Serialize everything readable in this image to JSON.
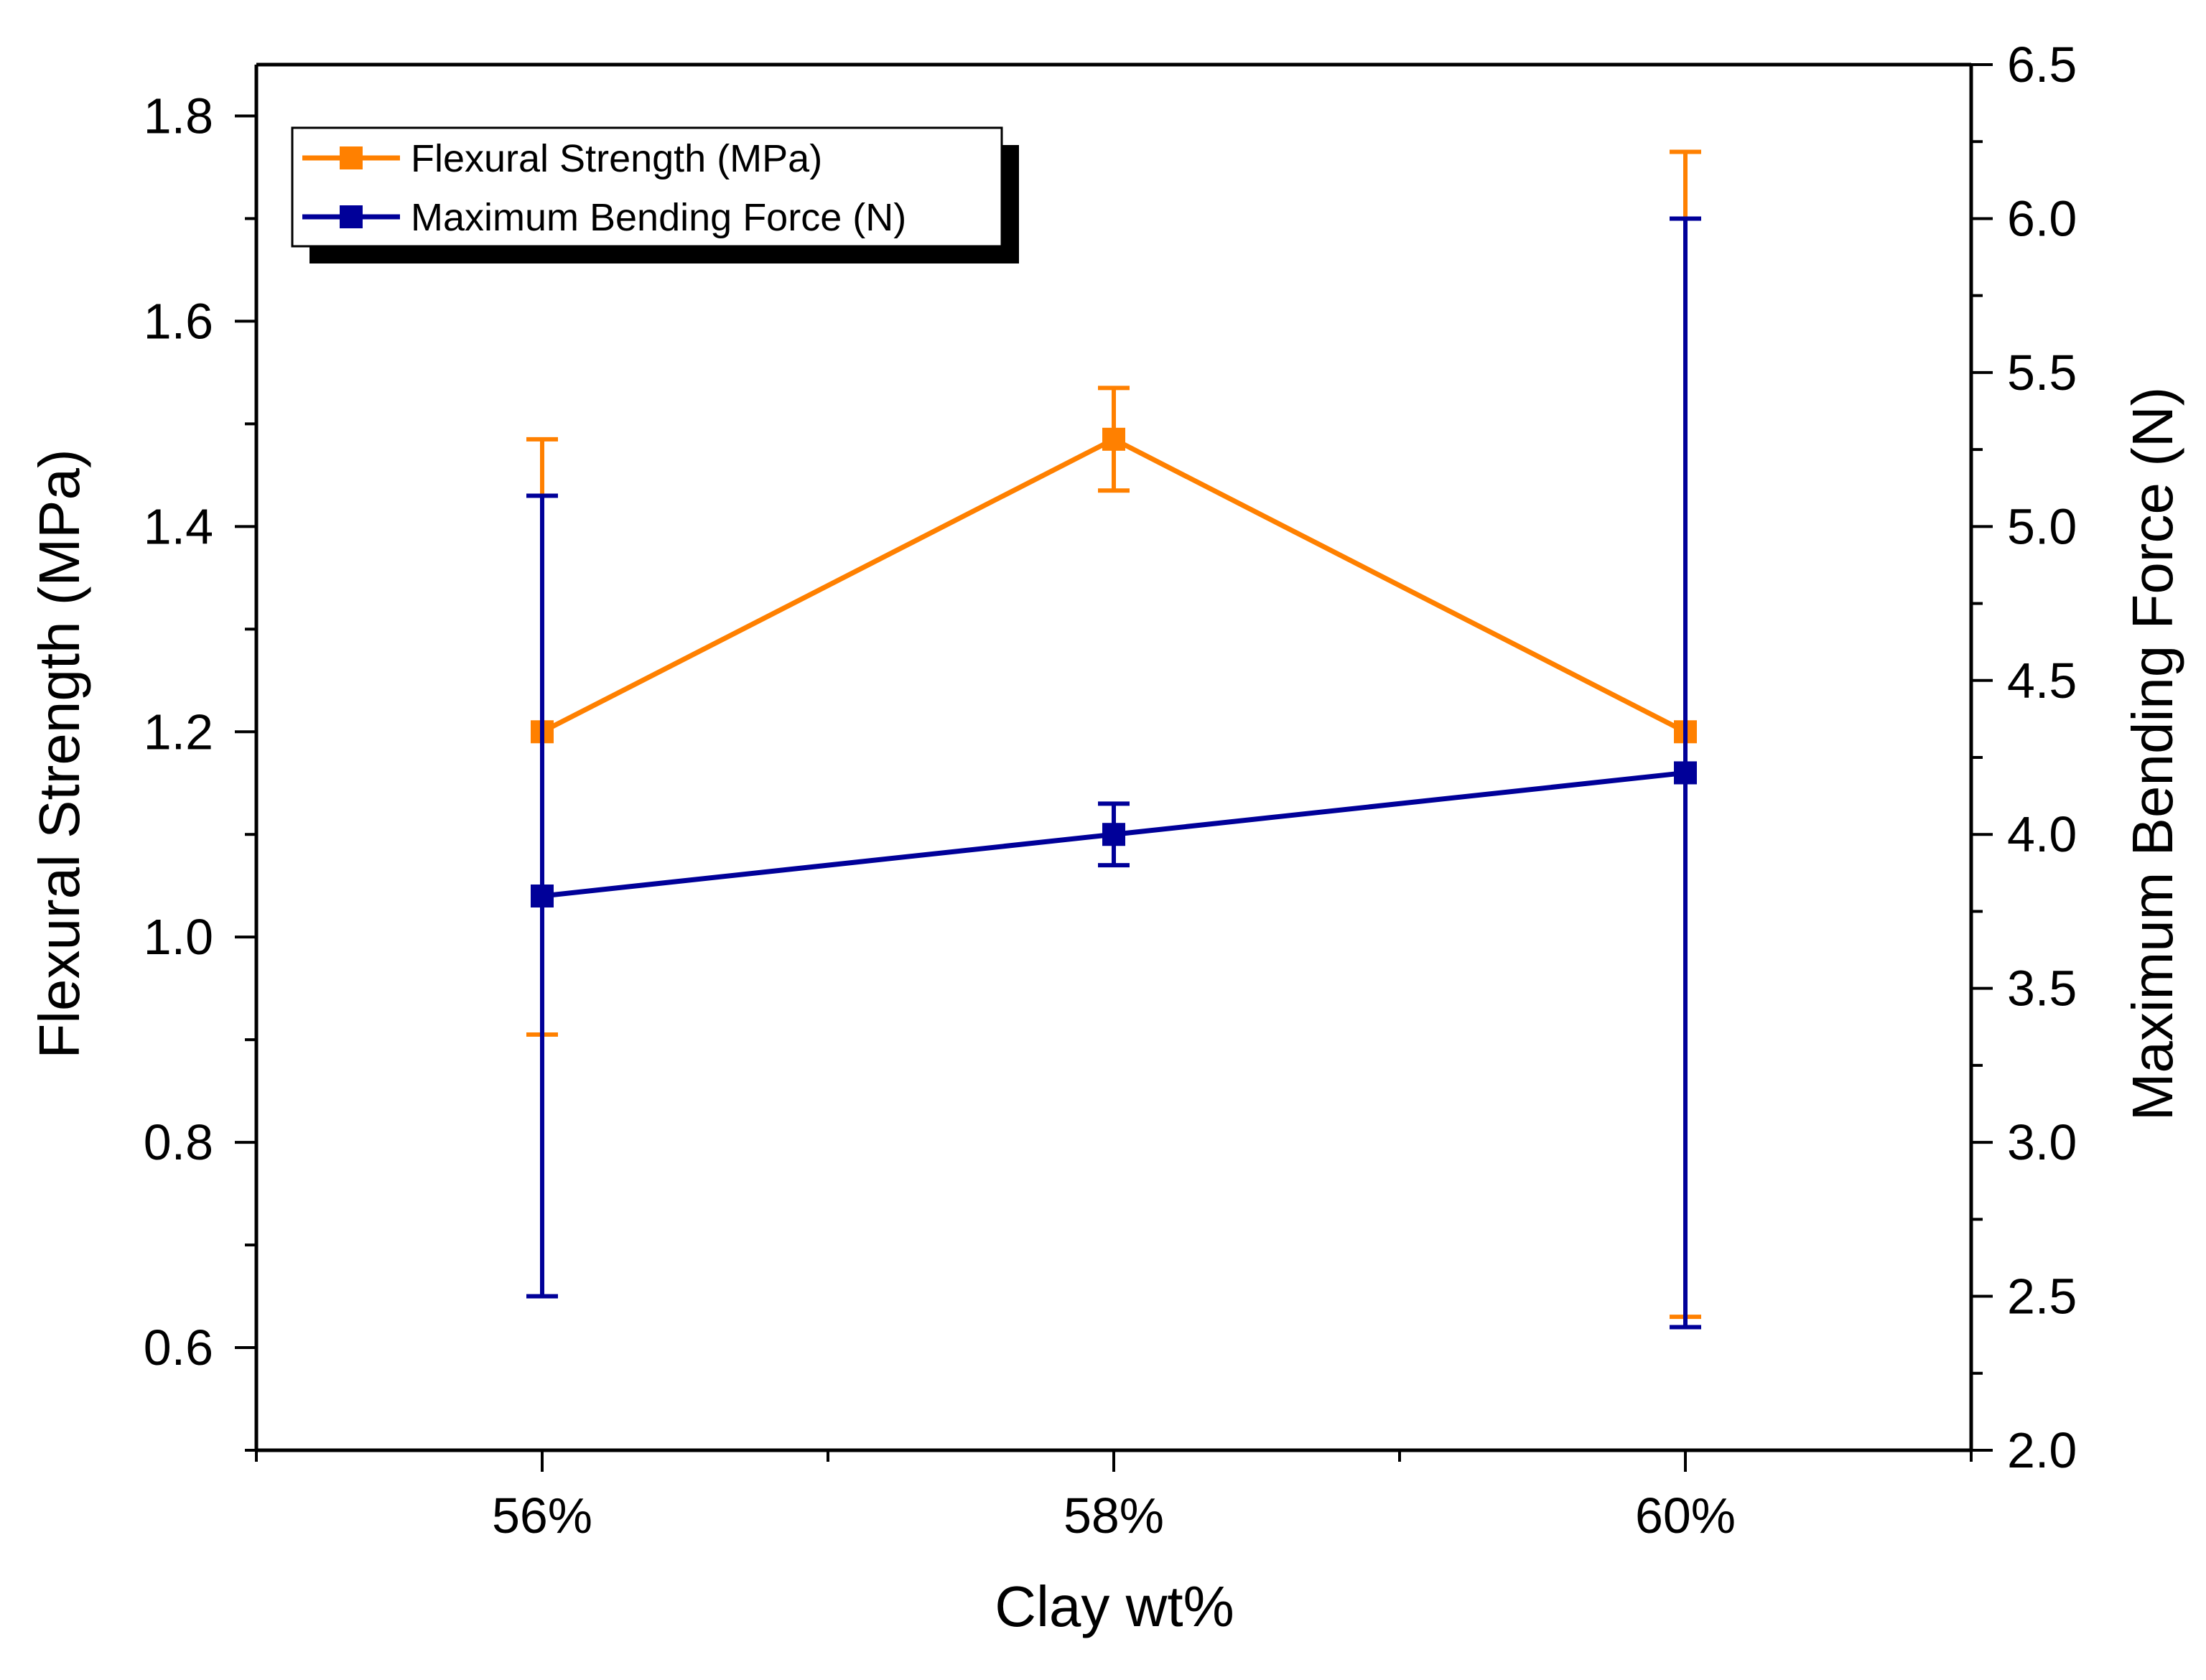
{
  "colors": {
    "series_1": "#FF8000",
    "series_2": "#000099",
    "axis": "#000000",
    "background": "#FFFFFF"
  },
  "chart_data": {
    "type": "line",
    "title": "",
    "xlabel": "Clay wt%",
    "ylabel_left": "Flexural Strength (MPa)",
    "ylabel_right": "Maximum Bending Force (N)",
    "categories": [
      "56%",
      "58%",
      "60%"
    ],
    "x_positions": [
      1,
      2,
      3
    ],
    "xlim": [
      0.5,
      3.5
    ],
    "ylim_left": [
      0.5,
      1.85
    ],
    "ylim_right": [
      2.0,
      6.5
    ],
    "yticks_left": [
      "0.6",
      "0.8",
      "1.0",
      "1.2",
      "1.4",
      "1.6",
      "1.8"
    ],
    "yticks_left_values": [
      0.6,
      0.8,
      1.0,
      1.2,
      1.4,
      1.6,
      1.8
    ],
    "yticks_right": [
      "2.0",
      "2.5",
      "3.0",
      "3.5",
      "4.0",
      "4.5",
      "5.0",
      "5.5",
      "6.0",
      "6.5"
    ],
    "yticks_right_values": [
      2.0,
      2.5,
      3.0,
      3.5,
      4.0,
      4.5,
      5.0,
      5.5,
      6.0,
      6.5
    ],
    "grid": false,
    "legend_position": "top-left",
    "series": [
      {
        "name": "Flexural Strength (MPa)",
        "axis": "left",
        "color": "#FF8000",
        "values": [
          1.2,
          1.485,
          1.2
        ],
        "err_low": [
          0.905,
          1.435,
          0.63
        ],
        "err_high": [
          1.485,
          1.535,
          1.765
        ]
      },
      {
        "name": "Maximum Bending Force (N)",
        "axis": "right",
        "color": "#000099",
        "values": [
          3.8,
          4.0,
          4.2
        ],
        "err_low": [
          2.5,
          3.9,
          2.4
        ],
        "err_high": [
          5.1,
          4.1,
          6.0
        ]
      }
    ]
  }
}
